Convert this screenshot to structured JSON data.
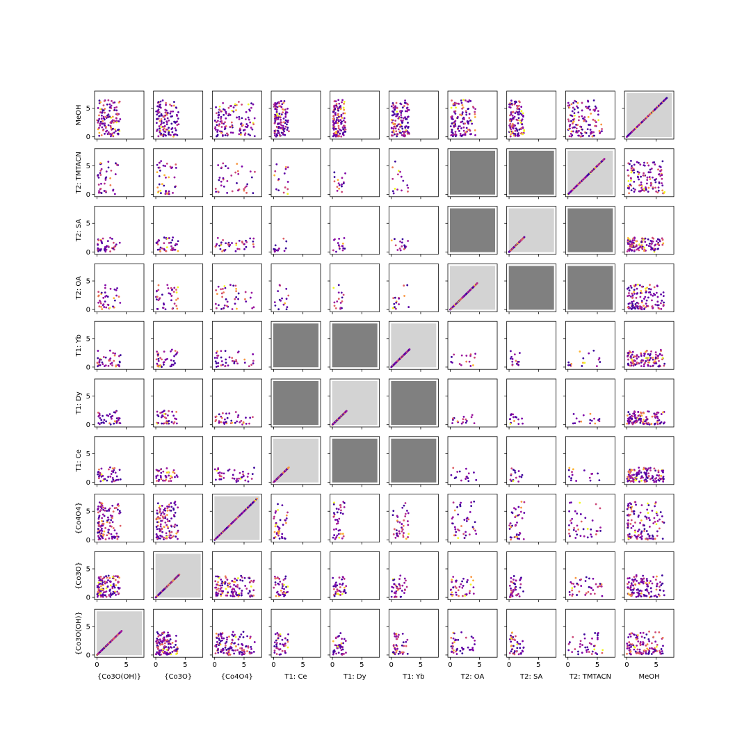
{
  "chart_data": {
    "type": "scatter",
    "title": "",
    "variables": [
      "{Co3O(OH)}",
      "{Co3O}",
      "{Co4O4}",
      "T1: Ce",
      "T1: Dy",
      "T1: Yb",
      "T2: OA",
      "T2: SA",
      "T2: TMTACN",
      "MeOH"
    ],
    "row_order_top_to_bottom": [
      "MeOH",
      "T2: TMTACN",
      "T2: SA",
      "T2: OA",
      "T1: Yb",
      "T1: Dy",
      "T1: Ce",
      "{Co4O4}",
      "{Co3O}",
      "{Co3O(OH)}"
    ],
    "column_order_left_to_right": [
      "{Co3O(OH)}",
      "{Co3O}",
      "{Co4O4}",
      "T1: Ce",
      "T1: Dy",
      "T1: Yb",
      "T2: OA",
      "T2: SA",
      "T2: TMTACN",
      "MeOH"
    ],
    "xlim": [
      -0.4,
      8
    ],
    "ylim": [
      -0.4,
      8
    ],
    "x_ticks": [
      0,
      5
    ],
    "y_ticks": [
      0,
      5
    ],
    "colormap": "plasma",
    "point_colors": [
      "#3b049a",
      "#5c01a6",
      "#7e03a8",
      "#9c179e",
      "#b52f8c",
      "#cc4778",
      "#de5f65",
      "#ed7953",
      "#f89540",
      "#fdb42f",
      "#f0f921"
    ],
    "diagonal_background": "#d3d3d3",
    "excluded_background": "#808080",
    "excluded_cells": [
      [
        "T2: TMTACN",
        "T2: OA"
      ],
      [
        "T2: TMTACN",
        "T2: SA"
      ],
      [
        "T2: SA",
        "T2: OA"
      ],
      [
        "T2: SA",
        "T2: TMTACN"
      ],
      [
        "T2: OA",
        "T2: SA"
      ],
      [
        "T2: OA",
        "T2: TMTACN"
      ],
      [
        "T1: Yb",
        "T1: Ce"
      ],
      [
        "T1: Yb",
        "T1: Dy"
      ],
      [
        "T1: Dy",
        "T1: Ce"
      ],
      [
        "T1: Dy",
        "T1: Yb"
      ],
      [
        "T1: Ce",
        "T1: Dy"
      ],
      [
        "T1: Ce",
        "T1: Yb"
      ]
    ],
    "ranges": {
      "{Co3O(OH)}": [
        0,
        4.2
      ],
      "{Co3O}": [
        0,
        4
      ],
      "{Co4O4}": [
        0,
        7.2
      ],
      "T1: Ce": [
        0,
        2.6
      ],
      "T1: Dy": [
        0,
        2.4
      ],
      "T1: Yb": [
        0,
        3.1
      ],
      "T2: OA": [
        0,
        4.6
      ],
      "T2: SA": [
        0,
        2.6
      ],
      "T2: TMTACN": [
        0,
        6.2
      ],
      "MeOH": [
        0,
        6.8
      ]
    },
    "cell_point_counts": {
      "diagonal": 60,
      "co_block": 120,
      "mixed_with_co": 40,
      "tag_vs_tag": 16,
      "with_MeOH": 120
    }
  }
}
